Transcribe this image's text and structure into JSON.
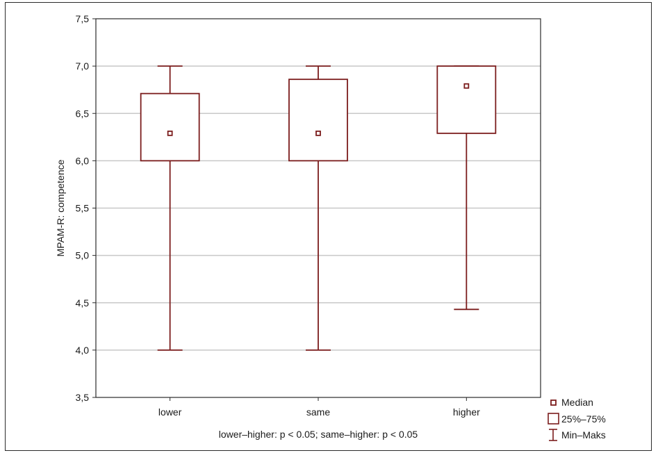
{
  "chart_data": {
    "type": "boxplot",
    "ylabel": "MPAM-R: competence",
    "xlabel": "lower–higher: p < 0.05; same–higher: p < 0.05",
    "ylim": [
      3.5,
      7.5
    ],
    "yticks": [
      "3,5",
      "4,0",
      "4,5",
      "5,0",
      "5,5",
      "6,0",
      "6,5",
      "7,0",
      "7,5"
    ],
    "grid": true,
    "categories": [
      "lower",
      "same",
      "higher"
    ],
    "series": [
      {
        "category": "lower",
        "min": 4.0,
        "q1": 6.0,
        "median": 6.29,
        "q3": 6.71,
        "max": 7.0
      },
      {
        "category": "same",
        "min": 4.0,
        "q1": 6.0,
        "median": 6.29,
        "q3": 6.86,
        "max": 7.0
      },
      {
        "category": "higher",
        "min": 4.43,
        "q1": 6.29,
        "median": 6.79,
        "q3": 7.0,
        "max": 7.0
      }
    ],
    "legend": {
      "position": "bottom-right",
      "items": [
        {
          "symbol": "median-square",
          "label": "Median"
        },
        {
          "symbol": "box",
          "label": "25%–75%"
        },
        {
          "symbol": "whisker",
          "label": "Min–Maks"
        }
      ]
    },
    "colors": {
      "mark": "#7b1c1c",
      "grid": "#c8c8c8",
      "axis": "#2a2a2a"
    }
  }
}
